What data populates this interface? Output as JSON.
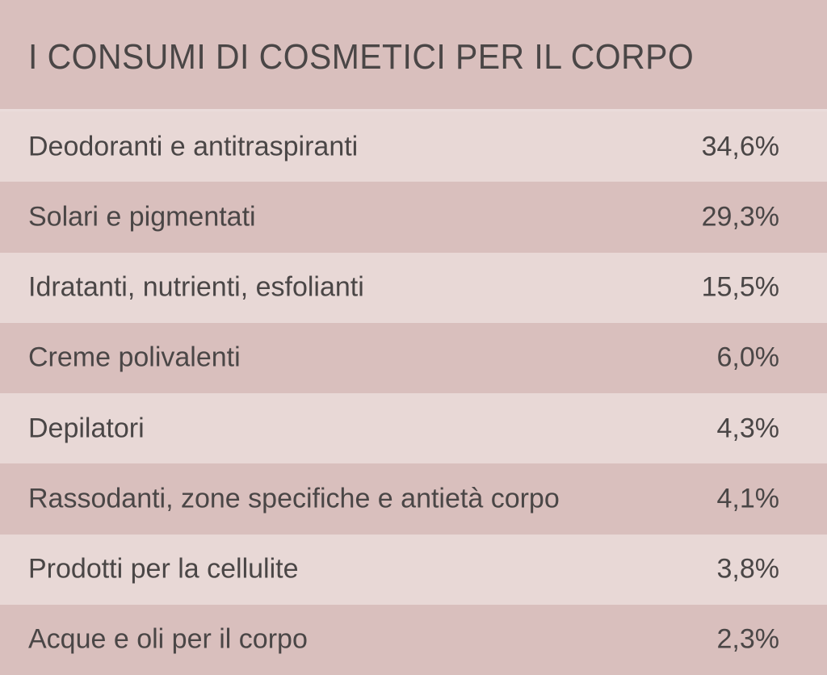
{
  "header": {
    "title": "I CONSUMI DI COSMETICI PER IL CORPO"
  },
  "table": {
    "rows": [
      [
        "Deodoranti e antitraspiranti",
        "34,6%"
      ],
      [
        "Solari e pigmentati",
        "29,3%"
      ],
      [
        "Idratanti, nutrienti, esfolianti",
        "15,5%"
      ],
      [
        "Creme polivalenti",
        "6,0%"
      ],
      [
        "Depilatori",
        "4,3%"
      ],
      [
        "Rassodanti, zone specifiche e antietà corpo",
        "4,1%"
      ],
      [
        "Prodotti per la cellulite",
        "3,8%"
      ],
      [
        "Acque e oli per il corpo",
        "2,3%"
      ]
    ]
  }
}
